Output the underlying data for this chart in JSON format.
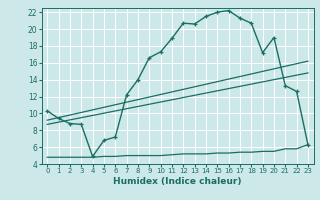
{
  "xlabel": "Humidex (Indice chaleur)",
  "bg_color": "#cce8e8",
  "grid_color": "#ffffff",
  "line_color": "#1a6e62",
  "xlim": [
    -0.5,
    23.5
  ],
  "ylim": [
    4,
    22.5
  ],
  "xticks": [
    0,
    1,
    2,
    3,
    4,
    5,
    6,
    7,
    8,
    9,
    10,
    11,
    12,
    13,
    14,
    15,
    16,
    17,
    18,
    19,
    20,
    21,
    22,
    23
  ],
  "yticks": [
    4,
    6,
    8,
    10,
    12,
    14,
    16,
    18,
    20,
    22
  ],
  "curve1_x": [
    0,
    1,
    2,
    3,
    4,
    5,
    6,
    7,
    8,
    9,
    10,
    11,
    12,
    13,
    14,
    15,
    16,
    17,
    18,
    19,
    20,
    21,
    22,
    23
  ],
  "curve1_y": [
    10.3,
    9.4,
    8.8,
    8.7,
    4.9,
    6.8,
    7.2,
    12.2,
    14.0,
    16.6,
    17.3,
    18.9,
    20.7,
    20.6,
    21.5,
    22.0,
    22.2,
    21.3,
    20.7,
    17.2,
    19.0,
    13.3,
    12.6,
    6.3
  ],
  "curve2_x": [
    0,
    1,
    2,
    3,
    4,
    5,
    6,
    7,
    8,
    9,
    10,
    11,
    12,
    13,
    14,
    15,
    16,
    17,
    18,
    19,
    20,
    21,
    22,
    23
  ],
  "curve2_y": [
    4.8,
    4.8,
    4.8,
    4.8,
    4.8,
    4.9,
    4.9,
    5.0,
    5.0,
    5.0,
    5.0,
    5.1,
    5.2,
    5.2,
    5.2,
    5.3,
    5.3,
    5.4,
    5.4,
    5.5,
    5.5,
    5.8,
    5.8,
    6.3
  ],
  "line1_x": [
    0,
    23
  ],
  "line1_y": [
    9.2,
    16.2
  ],
  "line2_x": [
    0,
    23
  ],
  "line2_y": [
    8.7,
    14.8
  ]
}
